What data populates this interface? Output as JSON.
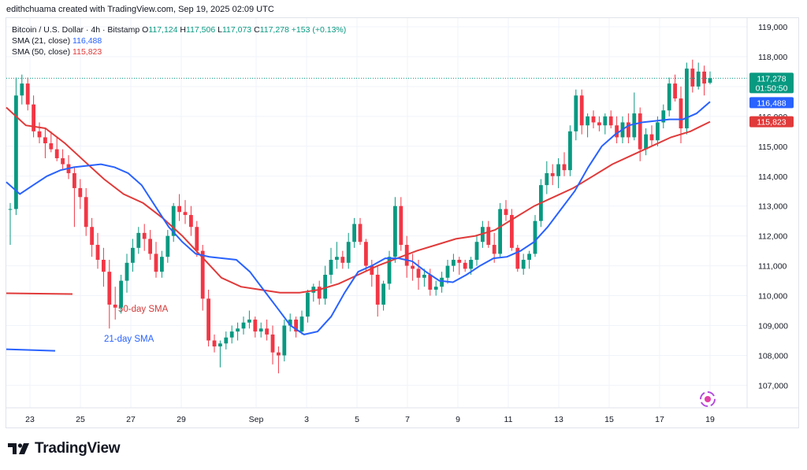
{
  "header": {
    "text": "edithchuama created with TradingView.com, Sep 19, 2025 02:09 UTC"
  },
  "legend": {
    "symbol": "Bitcoin / U.S. Dollar · 4h · Bitstamp",
    "o_label": "O",
    "o_value": "117,124",
    "h_label": "H",
    "h_value": "117,506",
    "l_label": "L",
    "l_value": "117,073",
    "c_label": "C",
    "c_value": "117,278",
    "change": "+153 (+0.13%)",
    "sma21_label": "SMA (21, close)",
    "sma21_value": "116,488",
    "sma50_label": "SMA (50, close)",
    "sma50_value": "115,823"
  },
  "badges": {
    "price": "117,278",
    "countdown": "01:50:50",
    "sma21": "116,488",
    "sma50": "115,823"
  },
  "annotations": {
    "sma50_label": "50-day SMA",
    "sma21_label": "21-day SMA"
  },
  "footer": {
    "brand": "TradingView"
  },
  "colors": {
    "up": "#089981",
    "down": "#f23645",
    "sma21": "#2962ff",
    "sma50": "#e03a3a",
    "grid": "#f0f3fa"
  },
  "chart_data": {
    "type": "candlestick",
    "title": "Bitcoin / U.S. Dollar · 4h · Bitstamp",
    "interval": "4h",
    "ylim": [
      106400,
      119300
    ],
    "y_ticks": [
      107000,
      108000,
      109000,
      110000,
      111000,
      112000,
      113000,
      114000,
      115000,
      116000,
      117000,
      118000,
      119000
    ],
    "y_tick_labels": [
      "107,000",
      "108,000",
      "109,000",
      "110,000",
      "111,000",
      "112,000",
      "113,000",
      "114,000",
      "115,000",
      "116,000",
      "117,000",
      "118,000",
      "119,000"
    ],
    "x_tick_labels": [
      "23",
      "25",
      "27",
      "29",
      "Sep",
      "3",
      "5",
      "7",
      "9",
      "11",
      "13",
      "15",
      "17",
      "19"
    ],
    "last_price": 117278,
    "sma21_last": 116488,
    "sma50_last": 115823,
    "candles": [
      [
        112900,
        113100,
        111700,
        112900
      ],
      [
        112900,
        117300,
        112700,
        116700
      ],
      [
        116700,
        117400,
        116400,
        117100
      ],
      [
        117100,
        117300,
        116200,
        116400
      ],
      [
        116400,
        116700,
        115300,
        115500
      ],
      [
        115500,
        115800,
        115100,
        115300
      ],
      [
        115300,
        115600,
        114600,
        115100
      ],
      [
        115100,
        115500,
        114800,
        114900
      ],
      [
        114900,
        115300,
        114500,
        114600
      ],
      [
        114600,
        114900,
        114200,
        114400
      ],
      [
        114400,
        114700,
        113900,
        114100
      ],
      [
        114100,
        114300,
        112300,
        113600
      ],
      [
        113600,
        113900,
        112900,
        113300
      ],
      [
        113300,
        113600,
        112000,
        112300
      ],
      [
        112300,
        112600,
        111300,
        111700
      ],
      [
        111700,
        112100,
        110900,
        111200
      ],
      [
        111200,
        111600,
        110300,
        110800
      ],
      [
        110800,
        111200,
        108900,
        109700
      ],
      [
        109700,
        110300,
        109200,
        109600
      ],
      [
        109600,
        110700,
        109400,
        110500
      ],
      [
        110500,
        111400,
        110100,
        111100
      ],
      [
        111100,
        111900,
        110800,
        111600
      ],
      [
        111600,
        112300,
        111400,
        112100
      ],
      [
        112100,
        112400,
        111500,
        111900
      ],
      [
        111900,
        112200,
        111200,
        111400
      ],
      [
        111400,
        111800,
        110600,
        110800
      ],
      [
        110800,
        111500,
        110600,
        111300
      ],
      [
        111300,
        112200,
        111100,
        112000
      ],
      [
        112000,
        113100,
        111800,
        113000
      ],
      [
        113000,
        113400,
        112500,
        112800
      ],
      [
        112800,
        113200,
        112400,
        112700
      ],
      [
        112700,
        113000,
        112000,
        112300
      ],
      [
        112300,
        112500,
        111300,
        111500
      ],
      [
        111500,
        111700,
        109500,
        109900
      ],
      [
        109900,
        110200,
        108300,
        108500
      ],
      [
        108500,
        108700,
        108100,
        108300
      ],
      [
        108300,
        108500,
        107600,
        108400
      ],
      [
        108400,
        108800,
        108200,
        108600
      ],
      [
        108600,
        109000,
        108400,
        108800
      ],
      [
        108800,
        109100,
        108500,
        108900
      ],
      [
        108900,
        109300,
        108700,
        109100
      ],
      [
        109100,
        109500,
        108900,
        109200
      ],
      [
        109200,
        109300,
        108600,
        108800
      ],
      [
        108800,
        109100,
        108600,
        108900
      ],
      [
        108900,
        109200,
        108500,
        108700
      ],
      [
        108700,
        109000,
        107700,
        108100
      ],
      [
        108100,
        108300,
        107400,
        108000
      ],
      [
        108000,
        109200,
        107800,
        109000
      ],
      [
        109000,
        109400,
        108800,
        109200
      ],
      [
        109200,
        109300,
        108600,
        108800
      ],
      [
        108800,
        109500,
        108700,
        109300
      ],
      [
        109300,
        110200,
        109100,
        110100
      ],
      [
        110100,
        110400,
        109800,
        110300
      ],
      [
        110300,
        110500,
        109700,
        109900
      ],
      [
        109900,
        111000,
        109700,
        110700
      ],
      [
        110700,
        111600,
        110400,
        111200
      ],
      [
        111200,
        111800,
        110900,
        111300
      ],
      [
        111300,
        111500,
        110900,
        111100
      ],
      [
        111100,
        112100,
        110900,
        111800
      ],
      [
        111800,
        112600,
        111600,
        112400
      ],
      [
        112400,
        112600,
        111700,
        111800
      ],
      [
        111800,
        111900,
        110800,
        111000
      ],
      [
        111000,
        111200,
        110300,
        110700
      ],
      [
        110700,
        111000,
        109300,
        109700
      ],
      [
        109700,
        110500,
        109500,
        110400
      ],
      [
        110400,
        111500,
        110200,
        111300
      ],
      [
        111300,
        113300,
        111100,
        113000
      ],
      [
        113000,
        113300,
        111500,
        111700
      ],
      [
        111700,
        112000,
        110600,
        111000
      ],
      [
        111000,
        111400,
        110500,
        110900
      ],
      [
        110900,
        111200,
        110200,
        110600
      ],
      [
        110600,
        110900,
        110300,
        110700
      ],
      [
        110700,
        110900,
        110000,
        110200
      ],
      [
        110200,
        110500,
        110000,
        110300
      ],
      [
        110300,
        110800,
        110100,
        110600
      ],
      [
        110600,
        111200,
        110400,
        111000
      ],
      [
        111000,
        111400,
        110800,
        111200
      ],
      [
        111200,
        111300,
        110700,
        111100
      ],
      [
        111100,
        111200,
        110800,
        110900
      ],
      [
        110900,
        111300,
        110700,
        111200
      ],
      [
        111200,
        112000,
        111000,
        111800
      ],
      [
        111800,
        112500,
        111600,
        112300
      ],
      [
        112300,
        112500,
        111600,
        111700
      ],
      [
        111700,
        112100,
        111100,
        111400
      ],
      [
        111400,
        113100,
        111300,
        112900
      ],
      [
        112900,
        113200,
        112500,
        112700
      ],
      [
        112700,
        112900,
        111500,
        111600
      ],
      [
        111600,
        111700,
        110800,
        110900
      ],
      [
        110900,
        111400,
        110700,
        111200
      ],
      [
        111200,
        111500,
        110900,
        111400
      ],
      [
        111400,
        112700,
        111300,
        112500
      ],
      [
        112500,
        113900,
        112300,
        113700
      ],
      [
        113700,
        114500,
        113400,
        114100
      ],
      [
        114100,
        114400,
        113700,
        114000
      ],
      [
        114000,
        114600,
        113600,
        114400
      ],
      [
        114400,
        114800,
        114000,
        114200
      ],
      [
        114200,
        115700,
        114000,
        115500
      ],
      [
        115500,
        116900,
        115200,
        116700
      ],
      [
        116700,
        116900,
        115400,
        115700
      ],
      [
        115700,
        116100,
        115300,
        116000
      ],
      [
        116000,
        116200,
        115600,
        115800
      ],
      [
        115800,
        116000,
        115500,
        115700
      ],
      [
        115700,
        116100,
        115400,
        116000
      ],
      [
        116000,
        116200,
        115600,
        115700
      ],
      [
        115700,
        116000,
        115100,
        115300
      ],
      [
        115300,
        116000,
        115100,
        115800
      ],
      [
        115800,
        116100,
        115100,
        115300
      ],
      [
        115300,
        116800,
        115200,
        116100
      ],
      [
        116100,
        116300,
        114500,
        114900
      ],
      [
        114900,
        115600,
        114700,
        115400
      ],
      [
        115400,
        115700,
        115000,
        115200
      ],
      [
        115200,
        116000,
        115000,
        115800
      ],
      [
        115800,
        116400,
        115600,
        116200
      ],
      [
        116200,
        117300,
        116000,
        117100
      ],
      [
        117100,
        117400,
        116500,
        116600
      ],
      [
        116600,
        117000,
        115100,
        115600
      ],
      [
        115600,
        117800,
        115400,
        117600
      ],
      [
        117600,
        117900,
        116800,
        117000
      ],
      [
        117000,
        117800,
        116900,
        117500
      ],
      [
        117500,
        117700,
        116700,
        117100
      ],
      [
        117124,
        117506,
        117073,
        117278
      ]
    ],
    "sma21": [
      113800,
      113400,
      113700,
      114000,
      114200,
      114300,
      114350,
      114400,
      114300,
      114100,
      113700,
      113000,
      112300,
      111800,
      111400,
      111300,
      111250,
      111200,
      110800,
      110200,
      109600,
      109000,
      108700,
      108800,
      109300,
      110100,
      110800,
      111000,
      111250,
      111250,
      111150,
      110800,
      110500,
      110450,
      110700,
      111000,
      111250,
      111300,
      111500,
      111800,
      112300,
      112900,
      113500,
      114300,
      115000,
      115400,
      115700,
      115800,
      115850,
      115900,
      115900,
      116100,
      116488
    ],
    "sma50": [
      116300,
      115700,
      115600,
      115100,
      114500,
      113900,
      113400,
      113100,
      112600,
      112000,
      111300,
      110600,
      110300,
      110200,
      110100,
      110100,
      110200,
      110400,
      110700,
      111000,
      111250,
      111500,
      111700,
      111900,
      112000,
      112200,
      112600,
      113000,
      113300,
      113600,
      114000,
      114400,
      114700,
      115000,
      115300,
      115500,
      115823
    ],
    "sma50_stub": [
      110000,
      110000
    ],
    "sma21_stub": [
      108600,
      108600
    ]
  }
}
